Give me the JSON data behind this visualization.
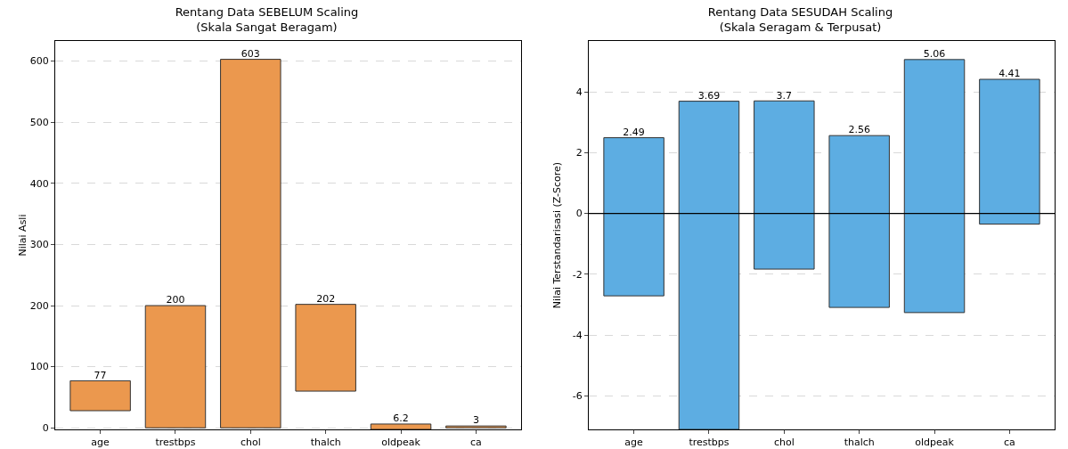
{
  "chart_data": [
    {
      "type": "bar",
      "title": "Rentang Data SEBELUM Scaling\n(Skala Sangat Beragam)",
      "ylabel": "Nilai Asli",
      "categories": [
        "age",
        "trestbps",
        "chol",
        "thalch",
        "oldpeak",
        "ca"
      ],
      "base": [
        28,
        0,
        0,
        60,
        -2.6,
        0
      ],
      "values": [
        49,
        200,
        603,
        142,
        8.8,
        3
      ],
      "value_labels": [
        "77",
        "200",
        "603",
        "202",
        "6.2",
        "3"
      ],
      "color": "#eb984e",
      "ylim": [
        -2.6,
        633
      ],
      "yticks": [
        0,
        100,
        200,
        300,
        400,
        500,
        600
      ],
      "grid": "y"
    },
    {
      "type": "bar",
      "title": "Rentang Data SESUDAH Scaling\n(Skala Seragam & Terpusat)",
      "ylabel": "Nilai Terstandarisasi (Z-Score)",
      "categories": [
        "age",
        "trestbps",
        "chol",
        "thalch",
        "oldpeak",
        "ca"
      ],
      "base": [
        -2.71,
        -7.1,
        -1.83,
        -3.09,
        -3.26,
        -0.35
      ],
      "values": [
        5.2,
        10.79,
        5.53,
        5.65,
        8.32,
        4.76
      ],
      "value_labels": [
        "2.49",
        "3.69",
        "3.7",
        "2.56",
        "5.06",
        "4.41"
      ],
      "color": "#5dade2",
      "ylim": [
        -7.1,
        5.67
      ],
      "yticks": [
        -6,
        -4,
        -2,
        0,
        2,
        4
      ],
      "grid": "y",
      "ref_lines": [
        {
          "axis": "y",
          "value": 0,
          "color": "#000000"
        }
      ]
    }
  ]
}
